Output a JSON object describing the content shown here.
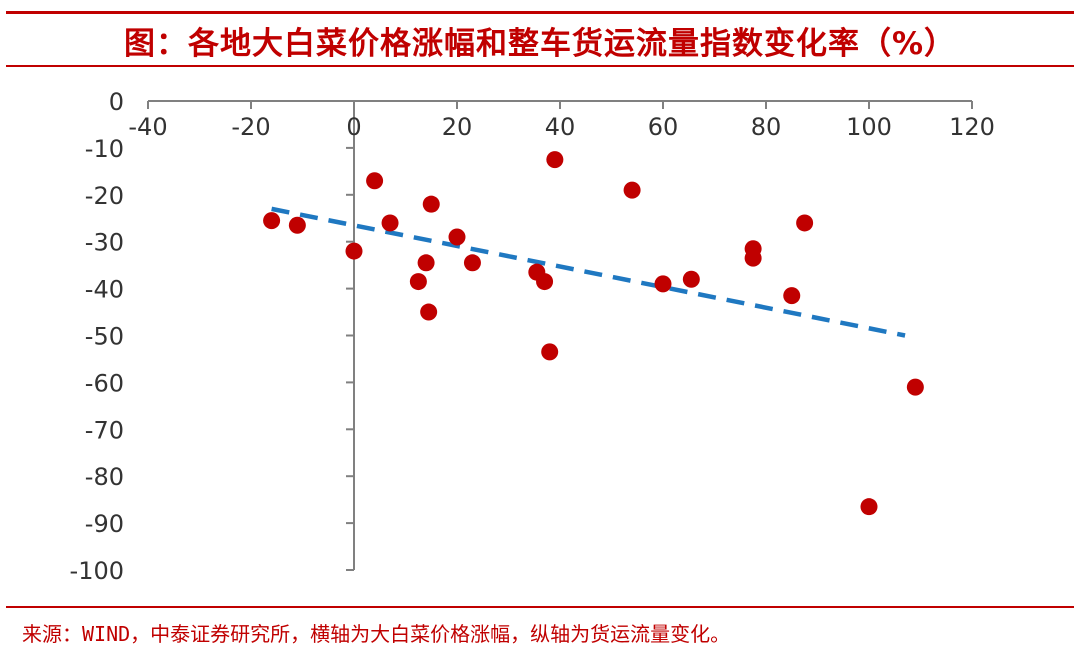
{
  "colors": {
    "accent": "#c00000",
    "axis": "#808080",
    "text": "#333333",
    "point": "#c00000",
    "trend": "#1f78c1"
  },
  "header": {
    "title": "图：各地大白菜价格涨幅和整车货运流量指数变化率（%）"
  },
  "footer": {
    "source": "来源：WIND，中泰证券研究所，横轴为大白菜价格涨幅，纵轴为货运流量变化。"
  },
  "chart_data": {
    "type": "scatter",
    "title": "图：各地大白菜价格涨幅和整车货运流量指数变化率（%）",
    "xlabel": "",
    "ylabel": "",
    "xlim": [
      -40,
      120
    ],
    "ylim": [
      -100,
      0
    ],
    "x_ticks": [
      -40,
      -20,
      0,
      20,
      40,
      60,
      80,
      100,
      120
    ],
    "y_ticks": [
      0,
      -10,
      -20,
      -30,
      -40,
      -50,
      -60,
      -70,
      -80,
      -90,
      -100
    ],
    "grid": false,
    "legend": "none",
    "points": [
      {
        "x": -16,
        "y": -25.5
      },
      {
        "x": -11,
        "y": -26.5
      },
      {
        "x": 0,
        "y": -32
      },
      {
        "x": 4,
        "y": -17
      },
      {
        "x": 7,
        "y": -26
      },
      {
        "x": 12.5,
        "y": -38.5
      },
      {
        "x": 14,
        "y": -34.5
      },
      {
        "x": 14.5,
        "y": -45
      },
      {
        "x": 15,
        "y": -22
      },
      {
        "x": 20,
        "y": -29
      },
      {
        "x": 23,
        "y": -34.5
      },
      {
        "x": 35.5,
        "y": -36.5
      },
      {
        "x": 37,
        "y": -38.5
      },
      {
        "x": 38,
        "y": -53.5
      },
      {
        "x": 39,
        "y": -12.5
      },
      {
        "x": 54,
        "y": -19
      },
      {
        "x": 60,
        "y": -39
      },
      {
        "x": 65.5,
        "y": -38
      },
      {
        "x": 77.5,
        "y": -31.5
      },
      {
        "x": 77.5,
        "y": -33.5
      },
      {
        "x": 85,
        "y": -41.5
      },
      {
        "x": 87.5,
        "y": -26
      },
      {
        "x": 100,
        "y": -86.5
      },
      {
        "x": 109,
        "y": -61
      }
    ],
    "trendline": {
      "x": [
        -16,
        107
      ],
      "y": [
        -23,
        -50
      ]
    }
  }
}
